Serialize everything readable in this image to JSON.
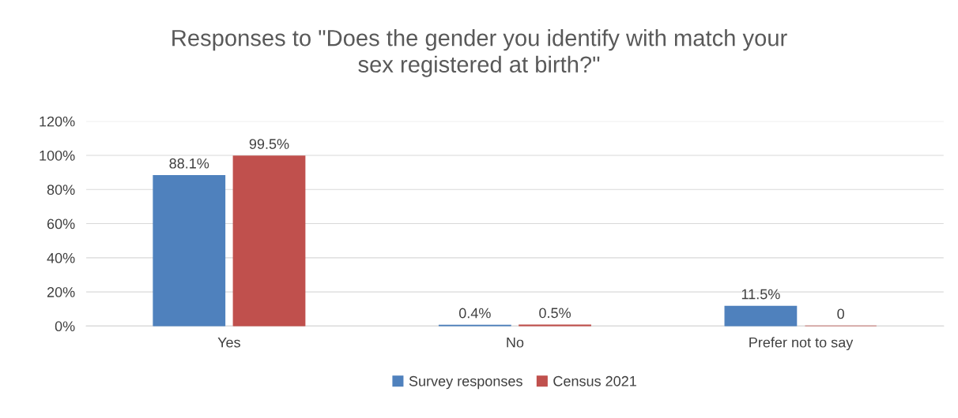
{
  "chart_data": {
    "type": "bar",
    "title": "Responses to \"Does the gender you identify with match your\nsex registered at birth?\"",
    "categories": [
      "Yes",
      "No",
      "Prefer not to say"
    ],
    "series": [
      {
        "name": "Survey responses",
        "color": "#4f81bd",
        "values": [
          88.1,
          0.4,
          11.5
        ],
        "value_labels": [
          "88.1%",
          "0.4%",
          "11.5%"
        ]
      },
      {
        "name": "Census 2021",
        "color": "#c0504d",
        "values": [
          99.5,
          0.5,
          0
        ],
        "value_labels": [
          "99.5%",
          "0.5%",
          "0"
        ]
      }
    ],
    "ylim": [
      0,
      120
    ],
    "yticks": [
      {
        "value": 0,
        "label": "0%"
      },
      {
        "value": 20,
        "label": "20%"
      },
      {
        "value": 40,
        "label": "40%"
      },
      {
        "value": 60,
        "label": "60%"
      },
      {
        "value": 80,
        "label": "80%"
      },
      {
        "value": 100,
        "label": "100%"
      },
      {
        "value": 120,
        "label": "120%"
      }
    ],
    "grid": "y",
    "legend": "bottom"
  }
}
